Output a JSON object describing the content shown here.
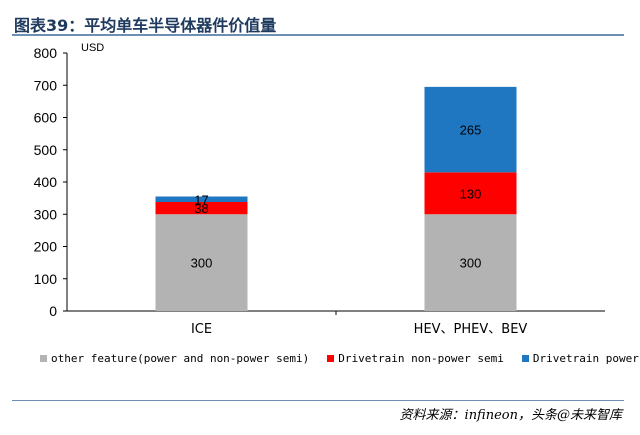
{
  "header": {
    "title": "图表39：平均单车半导体器件价值量"
  },
  "source": "资料来源：infineon，头条@未来智库",
  "colors": {
    "other": "#b3b3b3",
    "nonpower": "#ff0000",
    "power": "#1f77c1"
  },
  "chart_data": {
    "type": "bar",
    "stacked": true,
    "ylabel": "USD",
    "ylim": [
      0,
      800
    ],
    "yticks": [
      0,
      100,
      200,
      300,
      400,
      500,
      600,
      700,
      800
    ],
    "categories": [
      "ICE",
      "HEV、PHEV、BEV"
    ],
    "series": [
      {
        "name": "other feature(power and non-power semi)",
        "values": [
          300,
          300
        ]
      },
      {
        "name": "Drivetrain non-power semi",
        "values": [
          38,
          130
        ]
      },
      {
        "name": "Drivetrain power semi",
        "values": [
          17,
          265
        ]
      }
    ],
    "legend": "bottom",
    "grid": false
  }
}
